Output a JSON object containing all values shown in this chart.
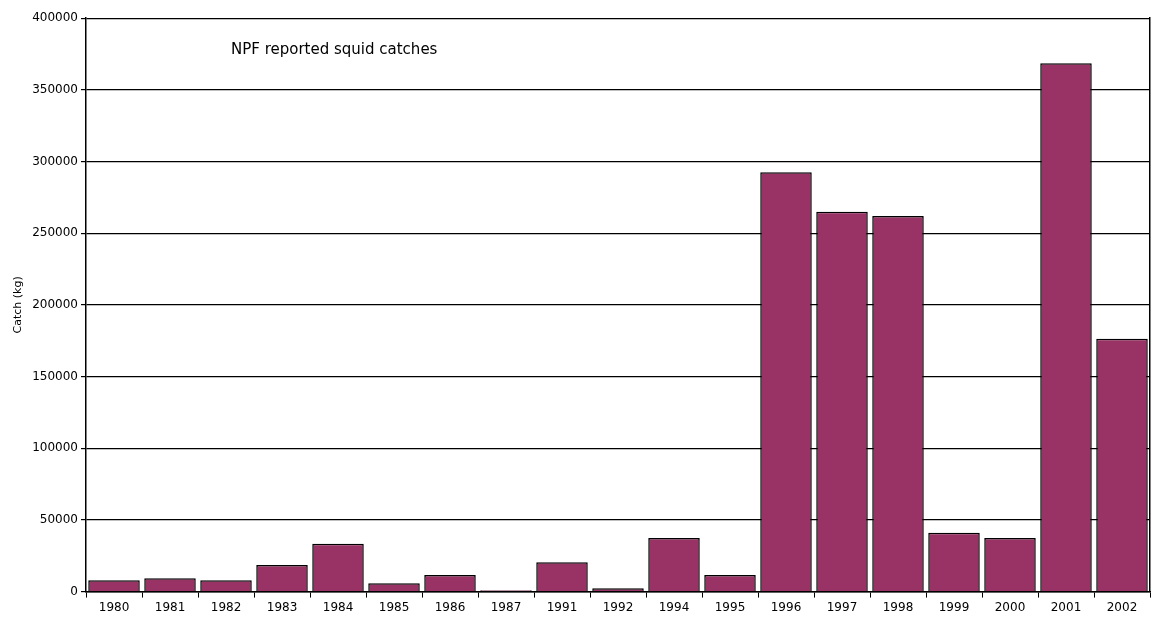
{
  "chart_data": {
    "type": "bar",
    "title": "NPF reported squid catches",
    "ylabel": "Catch (kg)",
    "categories": [
      "1980",
      "1981",
      "1982",
      "1983",
      "1984",
      "1985",
      "1986",
      "1987",
      "1991",
      "1992",
      "1994",
      "1995",
      "1996",
      "1997",
      "1998",
      "1999",
      "2000",
      "2001",
      "2002"
    ],
    "values": [
      8000,
      9300,
      8000,
      18600,
      33300,
      5800,
      11500,
      1000,
      20500,
      2300,
      37400,
      11500,
      292500,
      265000,
      262000,
      41000,
      37400,
      368600,
      176400
    ],
    "color": "#993366",
    "ylim": [
      0,
      400000
    ],
    "yticks": [
      0,
      50000,
      100000,
      150000,
      200000,
      250000,
      300000,
      350000,
      400000
    ],
    "grid": true,
    "legend": false
  }
}
